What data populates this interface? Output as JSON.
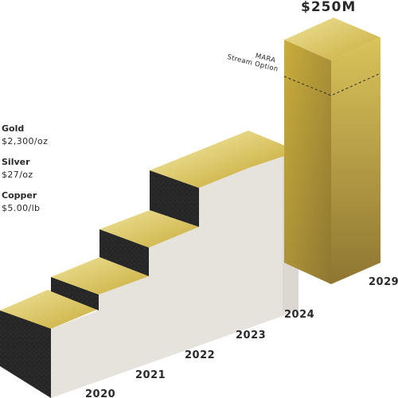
{
  "chart_data": {
    "type": "bar",
    "categories": [
      "2020",
      "2021",
      "2022",
      "2023",
      "2024",
      "2029"
    ],
    "stair_categories": [
      "2020",
      "2021",
      "2022",
      "2023",
      "2024"
    ],
    "tall_bar": {
      "category": "2029",
      "value_label": "$250M",
      "annotation_lines": [
        "MARA",
        "Stream Option"
      ]
    },
    "assumptions": [
      {
        "metal": "Gold",
        "price": "$2,300/oz"
      },
      {
        "metal": "Silver",
        "price": "$27/oz"
      },
      {
        "metal": "Copper",
        "price": "$5.00/lb"
      }
    ],
    "colors": {
      "gold_top_light": "#efe39a",
      "gold_top_dark": "#c9ad3c",
      "gold_face_light": "#d9c35a",
      "gold_face_dark": "#8f7631",
      "stone_front": "#e6e3dd",
      "stone_side": "#dcd8d1",
      "riser_dark": "#262626"
    }
  }
}
